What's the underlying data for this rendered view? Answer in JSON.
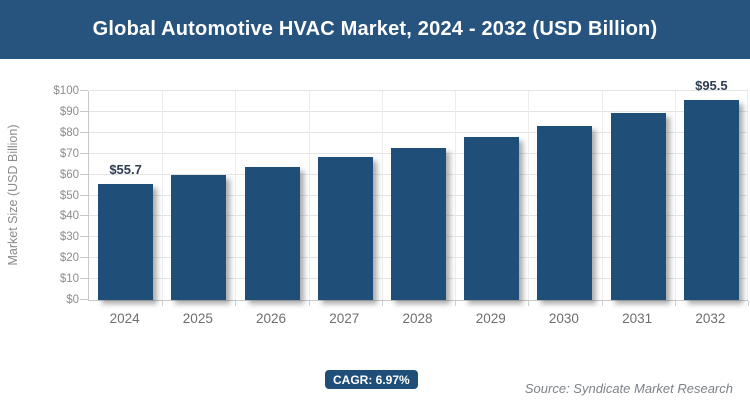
{
  "chart_data": {
    "type": "bar",
    "title": "Global Automotive HVAC Market, 2024 - 2032 (USD Billion)",
    "categories": [
      "2024",
      "2025",
      "2026",
      "2027",
      "2028",
      "2029",
      "2030",
      "2031",
      "2032"
    ],
    "values": [
      55.7,
      59.6,
      63.7,
      68.2,
      72.9,
      78.0,
      83.5,
      89.3,
      95.5
    ],
    "data_labels": [
      "$55.7",
      "",
      "",
      "",
      "",
      "",
      "",
      "",
      "$95.5"
    ],
    "ylabel": "Market Size (USD Billion)",
    "xlabel": "",
    "ylim": [
      0,
      100
    ],
    "yticks": [
      "$0",
      "$10",
      "$20",
      "$30",
      "$40",
      "$50",
      "$60",
      "$70",
      "$80",
      "$90",
      "$100"
    ],
    "grid": true,
    "legend_position": "none",
    "colors": {
      "title_bar_bg": "#27537F",
      "bar_fill": "#1F4E79",
      "badge_bg": "#1F4E79"
    },
    "cagr_badge": "CAGR: 6.97%",
    "source": "Source: Syndicate Market Research"
  }
}
